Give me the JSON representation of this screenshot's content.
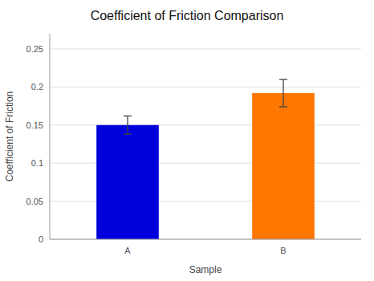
{
  "chart_data": {
    "type": "bar",
    "title": "Coefficient of Friction Comparison",
    "x_label": "Sample",
    "y_label": "Coefficient of Friction",
    "categories": [
      "A",
      "B"
    ],
    "values": [
      0.15,
      0.192
    ],
    "errors": [
      0.012,
      0.018
    ],
    "colors": [
      "#0000DD",
      "#FF7700"
    ],
    "ylim": [
      0,
      0.27
    ],
    "yticks": [
      0,
      0.05,
      0.1,
      0.15,
      0.2,
      0.25
    ],
    "grid": true
  }
}
